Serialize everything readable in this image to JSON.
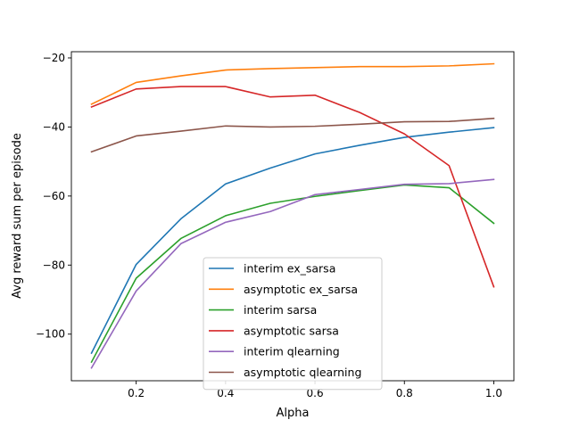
{
  "chart_data": {
    "type": "line",
    "title": "",
    "xlabel": "Alpha",
    "ylabel": "Avg reward sum per episode",
    "x": [
      0.1,
      0.2,
      0.3,
      0.4,
      0.5,
      0.6,
      0.7,
      0.8,
      0.9,
      1.0
    ],
    "xlim": [
      0.055,
      1.045
    ],
    "ylim": [
      -113.5,
      -18.2
    ],
    "xticks": [
      0.2,
      0.4,
      0.6,
      0.8,
      1.0
    ],
    "xtick_labels": [
      "0.2",
      "0.4",
      "0.6",
      "0.8",
      "1.0"
    ],
    "yticks": [
      -100,
      -80,
      -60,
      -40,
      -20
    ],
    "ytick_labels": [
      "−100",
      "−80",
      "−60",
      "−40",
      "−20"
    ],
    "grid": false,
    "legend_position": "lower-center",
    "series": [
      {
        "name": "interim ex_sarsa",
        "color": "#1f77b4",
        "values": [
          -105.5,
          -79.8,
          -66.6,
          -56.5,
          -51.9,
          -47.8,
          -45.3,
          -43.0,
          -41.5,
          -40.2
        ]
      },
      {
        "name": "asymptotic ex_sarsa",
        "color": "#ff7f0e",
        "values": [
          -33.4,
          -27.1,
          -25.2,
          -23.5,
          -23.1,
          -22.8,
          -22.5,
          -22.5,
          -22.3,
          -21.7
        ]
      },
      {
        "name": "interim sarsa",
        "color": "#2ca02c",
        "values": [
          -108.1,
          -83.8,
          -72.3,
          -65.7,
          -62.1,
          -60.1,
          -58.4,
          -56.8,
          -57.6,
          -67.9
        ]
      },
      {
        "name": "asymptotic sarsa",
        "color": "#d62728",
        "values": [
          -34.2,
          -29.0,
          -28.3,
          -28.3,
          -31.3,
          -30.8,
          -35.8,
          -42.0,
          -51.2,
          -86.3
        ]
      },
      {
        "name": "interim qlearning",
        "color": "#9467bd",
        "values": [
          -109.8,
          -87.5,
          -73.8,
          -67.6,
          -64.5,
          -59.6,
          -58.1,
          -56.6,
          -56.4,
          -55.2
        ]
      },
      {
        "name": "asymptotic qlearning",
        "color": "#8c564b",
        "values": [
          -47.2,
          -42.6,
          -41.2,
          -39.7,
          -40.0,
          -39.8,
          -39.2,
          -38.5,
          -38.4,
          -37.5
        ]
      }
    ]
  }
}
